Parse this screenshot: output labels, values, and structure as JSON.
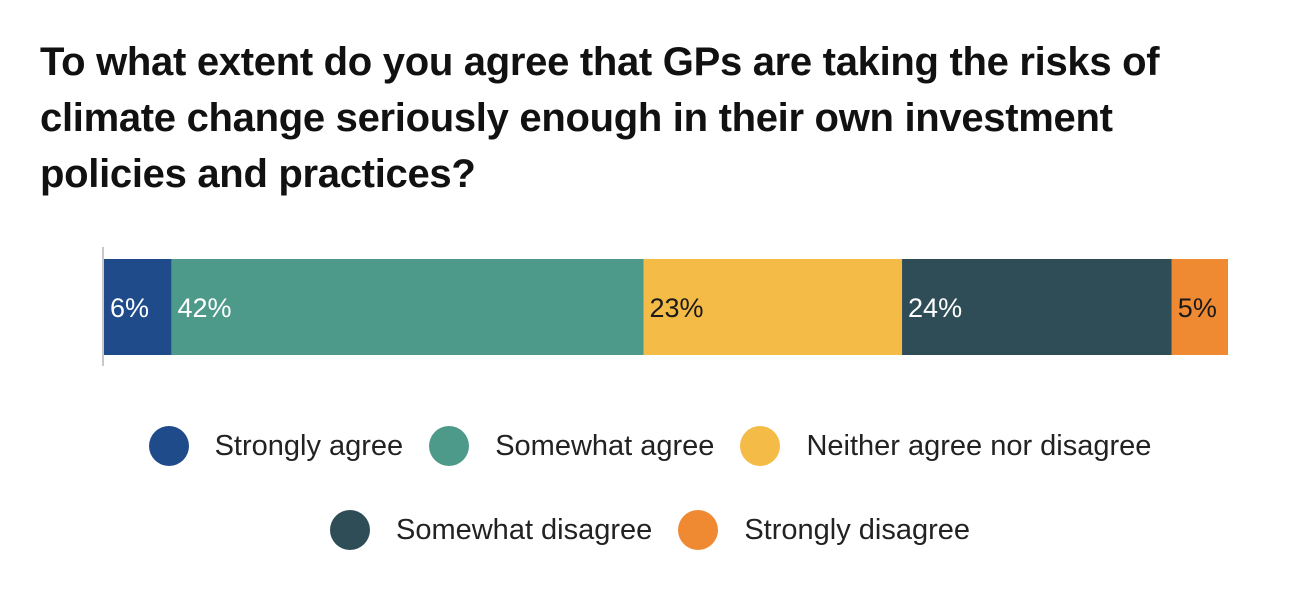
{
  "chart_data": {
    "type": "bar",
    "orientation": "horizontal",
    "stacked": true,
    "title": "To what extent do you agree that GPs are taking the risks of climate change seriously enough in their own investment policies and practices?",
    "xlabel": "",
    "ylabel": "",
    "xlim": [
      0,
      100
    ],
    "grid": false,
    "legend_position": "bottom",
    "series": [
      {
        "name": "Strongly agree",
        "value": 6,
        "label": "6%",
        "color": "#1f4b8a",
        "label_color": "#ffffff"
      },
      {
        "name": "Somewhat agree",
        "value": 42,
        "label": "42%",
        "color": "#4e9a8a",
        "label_color": "#ffffff"
      },
      {
        "name": "Neither agree nor disagree",
        "value": 23,
        "label": "23%",
        "color": "#f4bb46",
        "label_color": "#1a1a1a"
      },
      {
        "name": "Somewhat disagree",
        "value": 24,
        "label": "24%",
        "color": "#2e4d57",
        "label_color": "#ffffff"
      },
      {
        "name": "Strongly disagree",
        "value": 5,
        "label": "5%",
        "color": "#ef8a33",
        "label_color": "#1a1a1a"
      }
    ]
  },
  "legend": {
    "rows": [
      [
        "Strongly agree",
        "Somewhat agree",
        "Neither agree nor disagree"
      ],
      [
        "Somewhat disagree",
        "Strongly disagree"
      ]
    ]
  },
  "colors": {
    "axis": "#c8c8c8"
  }
}
